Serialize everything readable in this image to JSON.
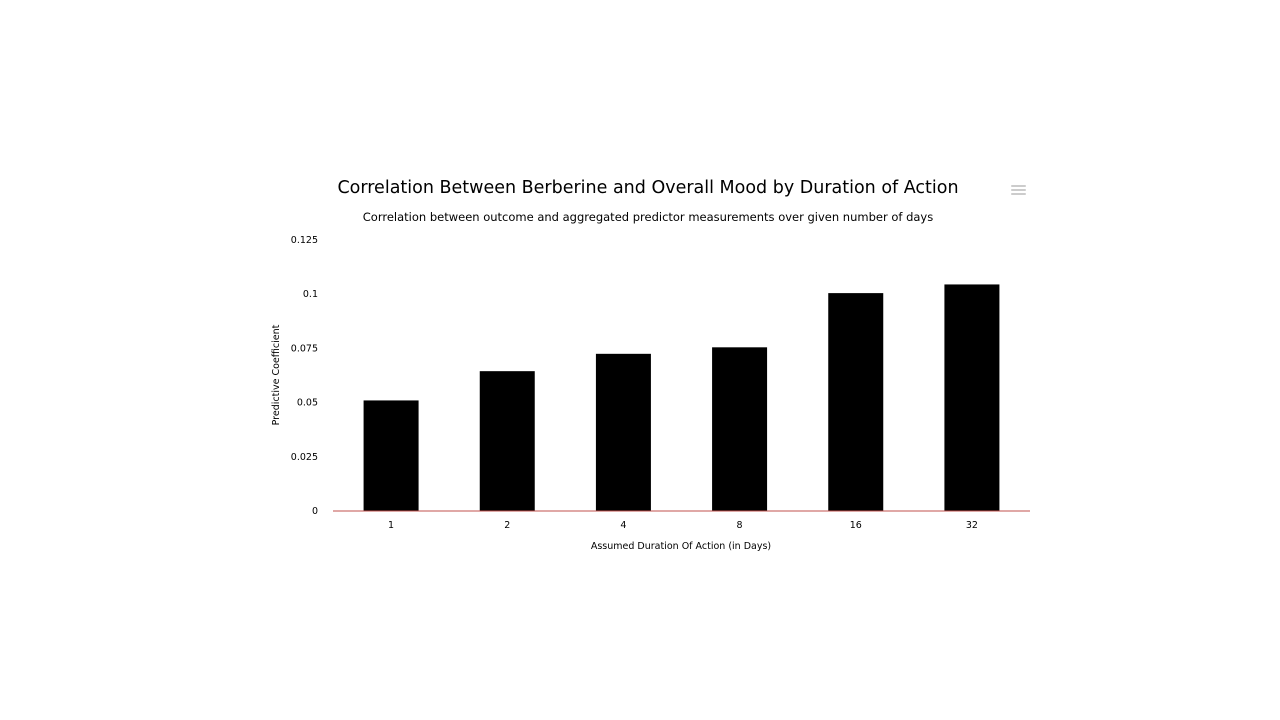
{
  "chart_data": {
    "type": "bar",
    "title": "Correlation Between Berberine and Overall Mood by Duration of Action",
    "subtitle": "Correlation between outcome and aggregated predictor measurements over given number of days",
    "xlabel": "Assumed Duration Of Action (in Days)",
    "ylabel": "Predictive Coefficient",
    "categories": [
      "1",
      "2",
      "4",
      "8",
      "16",
      "32"
    ],
    "values": [
      0.051,
      0.0645,
      0.0725,
      0.0755,
      0.1005,
      0.1045
    ],
    "ylim": [
      0,
      0.125
    ],
    "yticks": [
      "0",
      "0.025",
      "0.05",
      "0.075",
      "0.1",
      "0.125"
    ],
    "ytick_values": [
      0,
      0.025,
      0.05,
      0.075,
      0.1,
      0.125
    ],
    "grid": false,
    "colors": {
      "bar": "#000000",
      "axis_line": "#c0504d",
      "menu_icon": "#cccccc"
    }
  },
  "menu_icon": "hamburger-menu-icon"
}
